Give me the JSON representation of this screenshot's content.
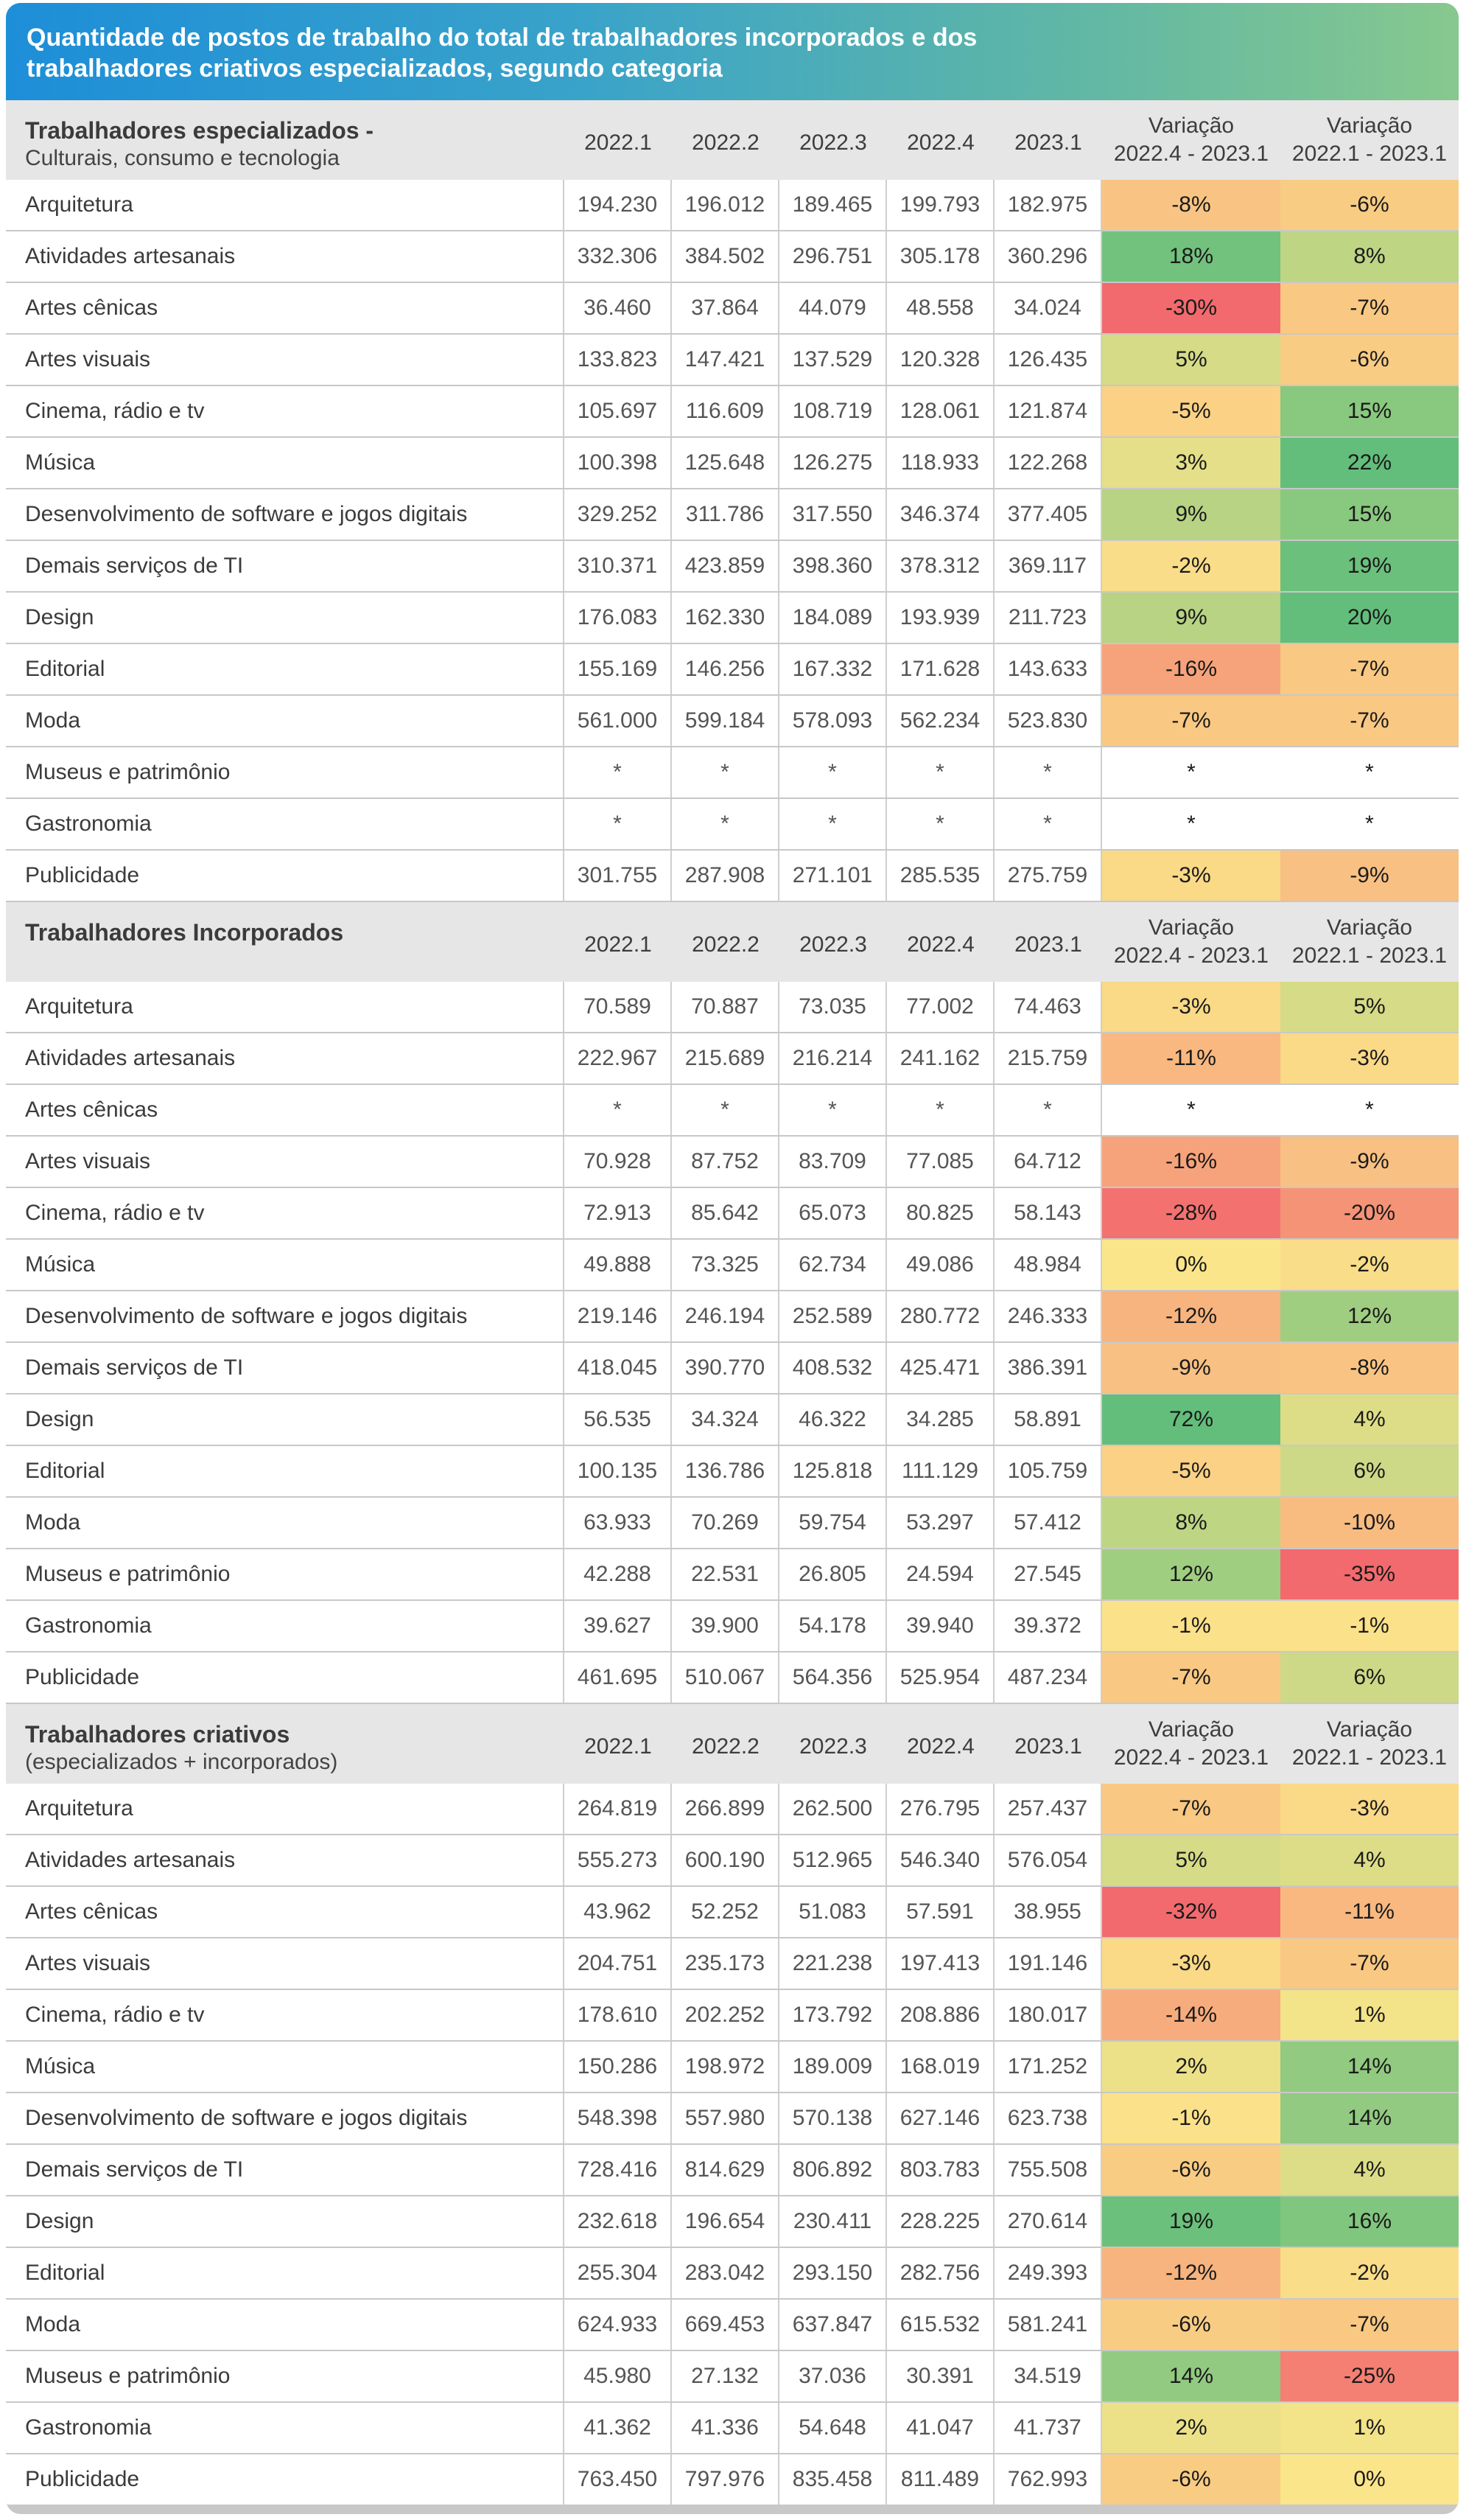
{
  "title_lines": [
    "Quantidade de postos de trabalho do total de trabalhadores incorporados e dos",
    "trabalhadores criativos especializados, segundo categoria"
  ],
  "chart_data": {
    "type": "table",
    "columns": [
      "2022.1",
      "2022.2",
      "2022.3",
      "2022.4",
      "2023.1"
    ],
    "variation_headers": [
      {
        "line1": "Variação",
        "line2": "2022.4 - 2023.1"
      },
      {
        "line1": "Variação",
        "line2": "2022.1 - 2023.1"
      }
    ],
    "sections": [
      {
        "title": "Trabalhadores especializados -",
        "subtitle": "Culturais, consumo e tecnologia",
        "rows": [
          {
            "category": "Arquitetura",
            "values": [
              "194.230",
              "196.012",
              "189.465",
              "199.793",
              "182.975"
            ],
            "var_q": "-8%",
            "var_y": "-6%"
          },
          {
            "category": "Atividades artesanais",
            "values": [
              "332.306",
              "384.502",
              "296.751",
              "305.178",
              "360.296"
            ],
            "var_q": "18%",
            "var_y": "8%"
          },
          {
            "category": "Artes cênicas",
            "values": [
              "36.460",
              "37.864",
              "44.079",
              "48.558",
              "34.024"
            ],
            "var_q": "-30%",
            "var_y": "-7%"
          },
          {
            "category": "Artes visuais",
            "values": [
              "133.823",
              "147.421",
              "137.529",
              "120.328",
              "126.435"
            ],
            "var_q": "5%",
            "var_y": "-6%"
          },
          {
            "category": "Cinema, rádio e tv",
            "values": [
              "105.697",
              "116.609",
              "108.719",
              "128.061",
              "121.874"
            ],
            "var_q": "-5%",
            "var_y": "15%"
          },
          {
            "category": "Música",
            "values": [
              "100.398",
              "125.648",
              "126.275",
              "118.933",
              "122.268"
            ],
            "var_q": "3%",
            "var_y": "22%"
          },
          {
            "category": "Desenvolvimento de software e jogos digitais",
            "values": [
              "329.252",
              "311.786",
              "317.550",
              "346.374",
              "377.405"
            ],
            "var_q": "9%",
            "var_y": "15%"
          },
          {
            "category": "Demais serviços de TI",
            "values": [
              "310.371",
              "423.859",
              "398.360",
              "378.312",
              "369.117"
            ],
            "var_q": "-2%",
            "var_y": "19%"
          },
          {
            "category": "Design",
            "values": [
              "176.083",
              "162.330",
              "184.089",
              "193.939",
              "211.723"
            ],
            "var_q": "9%",
            "var_y": "20%"
          },
          {
            "category": "Editorial",
            "values": [
              "155.169",
              "146.256",
              "167.332",
              "171.628",
              "143.633"
            ],
            "var_q": "-16%",
            "var_y": "-7%"
          },
          {
            "category": "Moda",
            "values": [
              "561.000",
              "599.184",
              "578.093",
              "562.234",
              "523.830"
            ],
            "var_q": "-7%",
            "var_y": "-7%"
          },
          {
            "category": "Museus e patrimônio",
            "values": [
              "*",
              "*",
              "*",
              "*",
              "*"
            ],
            "var_q": "*",
            "var_y": "*"
          },
          {
            "category": "Gastronomia",
            "values": [
              "*",
              "*",
              "*",
              "*",
              "*"
            ],
            "var_q": "*",
            "var_y": "*"
          },
          {
            "category": "Publicidade",
            "values": [
              "301.755",
              "287.908",
              "271.101",
              "285.535",
              "275.759"
            ],
            "var_q": "-3%",
            "var_y": "-9%"
          }
        ]
      },
      {
        "title": "Trabalhadores Incorporados",
        "subtitle": "",
        "rows": [
          {
            "category": "Arquitetura",
            "values": [
              "70.589",
              "70.887",
              "73.035",
              "77.002",
              "74.463"
            ],
            "var_q": "-3%",
            "var_y": "5%"
          },
          {
            "category": "Atividades artesanais",
            "values": [
              "222.967",
              "215.689",
              "216.214",
              "241.162",
              "215.759"
            ],
            "var_q": "-11%",
            "var_y": "-3%"
          },
          {
            "category": "Artes cênicas",
            "values": [
              "*",
              "*",
              "*",
              "*",
              "*"
            ],
            "var_q": "*",
            "var_y": "*"
          },
          {
            "category": "Artes visuais",
            "values": [
              "70.928",
              "87.752",
              "83.709",
              "77.085",
              "64.712"
            ],
            "var_q": "-16%",
            "var_y": "-9%"
          },
          {
            "category": "Cinema, rádio e tv",
            "values": [
              "72.913",
              "85.642",
              "65.073",
              "80.825",
              "58.143"
            ],
            "var_q": "-28%",
            "var_y": "-20%"
          },
          {
            "category": "Música",
            "values": [
              "49.888",
              "73.325",
              "62.734",
              "49.086",
              "48.984"
            ],
            "var_q": "0%",
            "var_y": "-2%"
          },
          {
            "category": "Desenvolvimento de software e jogos digitais",
            "values": [
              "219.146",
              "246.194",
              "252.589",
              "280.772",
              "246.333"
            ],
            "var_q": "-12%",
            "var_y": "12%"
          },
          {
            "category": "Demais serviços de TI",
            "values": [
              "418.045",
              "390.770",
              "408.532",
              "425.471",
              "386.391"
            ],
            "var_q": "-9%",
            "var_y": "-8%"
          },
          {
            "category": "Design",
            "values": [
              "56.535",
              "34.324",
              "46.322",
              "34.285",
              "58.891"
            ],
            "var_q": "72%",
            "var_y": "4%"
          },
          {
            "category": "Editorial",
            "values": [
              "100.135",
              "136.786",
              "125.818",
              "111.129",
              "105.759"
            ],
            "var_q": "-5%",
            "var_y": "6%"
          },
          {
            "category": "Moda",
            "values": [
              "63.933",
              "70.269",
              "59.754",
              "53.297",
              "57.412"
            ],
            "var_q": "8%",
            "var_y": "-10%"
          },
          {
            "category": "Museus e patrimônio",
            "values": [
              "42.288",
              "22.531",
              "26.805",
              "24.594",
              "27.545"
            ],
            "var_q": "12%",
            "var_y": "-35%"
          },
          {
            "category": "Gastronomia",
            "values": [
              "39.627",
              "39.900",
              "54.178",
              "39.940",
              "39.372"
            ],
            "var_q": "-1%",
            "var_y": "-1%"
          },
          {
            "category": "Publicidade",
            "values": [
              "461.695",
              "510.067",
              "564.356",
              "525.954",
              "487.234"
            ],
            "var_q": "-7%",
            "var_y": "6%"
          }
        ]
      },
      {
        "title": "Trabalhadores criativos",
        "subtitle": "(especializados + incorporados)",
        "rows": [
          {
            "category": "Arquitetura",
            "values": [
              "264.819",
              "266.899",
              "262.500",
              "276.795",
              "257.437"
            ],
            "var_q": "-7%",
            "var_y": "-3%"
          },
          {
            "category": "Atividades artesanais",
            "values": [
              "555.273",
              "600.190",
              "512.965",
              "546.340",
              "576.054"
            ],
            "var_q": "5%",
            "var_y": "4%"
          },
          {
            "category": "Artes cênicas",
            "values": [
              "43.962",
              "52.252",
              "51.083",
              "57.591",
              "38.955"
            ],
            "var_q": "-32%",
            "var_y": "-11%"
          },
          {
            "category": "Artes visuais",
            "values": [
              "204.751",
              "235.173",
              "221.238",
              "197.413",
              "191.146"
            ],
            "var_q": "-3%",
            "var_y": "-7%"
          },
          {
            "category": "Cinema, rádio e tv",
            "values": [
              "178.610",
              "202.252",
              "173.792",
              "208.886",
              "180.017"
            ],
            "var_q": "-14%",
            "var_y": "1%"
          },
          {
            "category": "Música",
            "values": [
              "150.286",
              "198.972",
              "189.009",
              "168.019",
              "171.252"
            ],
            "var_q": "2%",
            "var_y": "14%"
          },
          {
            "category": "Desenvolvimento de software e jogos digitais",
            "values": [
              "548.398",
              "557.980",
              "570.138",
              "627.146",
              "623.738"
            ],
            "var_q": "-1%",
            "var_y": "14%"
          },
          {
            "category": "Demais serviços de TI",
            "values": [
              "728.416",
              "814.629",
              "806.892",
              "803.783",
              "755.508"
            ],
            "var_q": "-6%",
            "var_y": "4%"
          },
          {
            "category": "Design",
            "values": [
              "232.618",
              "196.654",
              "230.411",
              "228.225",
              "270.614"
            ],
            "var_q": "19%",
            "var_y": "16%"
          },
          {
            "category": "Editorial",
            "values": [
              "255.304",
              "283.042",
              "293.150",
              "282.756",
              "249.393"
            ],
            "var_q": "-12%",
            "var_y": "-2%"
          },
          {
            "category": "Moda",
            "values": [
              "624.933",
              "669.453",
              "637.847",
              "615.532",
              "581.241"
            ],
            "var_q": "-6%",
            "var_y": "-7%"
          },
          {
            "category": "Museus e patrimônio",
            "values": [
              "45.980",
              "27.132",
              "37.036",
              "30.391",
              "34.519"
            ],
            "var_q": "14%",
            "var_y": "-25%"
          },
          {
            "category": "Gastronomia",
            "values": [
              "41.362",
              "41.336",
              "54.648",
              "41.047",
              "41.737"
            ],
            "var_q": "2%",
            "var_y": "1%"
          },
          {
            "category": "Publicidade",
            "values": [
              "763.450",
              "797.976",
              "835.458",
              "811.489",
              "762.993"
            ],
            "var_q": "-6%",
            "var_y": "0%"
          }
        ]
      }
    ]
  },
  "colors": {
    "title_gradient": [
      "#1d8ed8",
      "#3aa3c9",
      "#62b8a4",
      "#87c88e"
    ],
    "section_header_bg": "#e6e6e6",
    "scale_negative": "#f26a6e",
    "scale_neutral": "#fbe58a",
    "scale_positive": "#63be7b"
  }
}
